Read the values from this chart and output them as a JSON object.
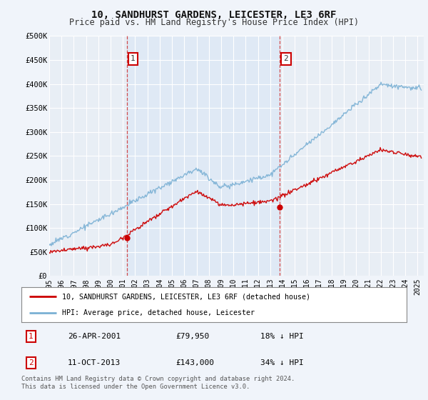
{
  "title": "10, SANDHURST GARDENS, LEICESTER, LE3 6RF",
  "subtitle": "Price paid vs. HM Land Registry's House Price Index (HPI)",
  "title_fontsize": 10,
  "subtitle_fontsize": 8.5,
  "bg_color": "#f0f4fa",
  "plot_bg_color": "#e8eef5",
  "grid_color": "#ffffff",
  "xmin": 1995.0,
  "xmax": 2025.5,
  "ymin": 0,
  "ymax": 500000,
  "yticks": [
    0,
    50000,
    100000,
    150000,
    200000,
    250000,
    300000,
    350000,
    400000,
    450000,
    500000
  ],
  "ytick_labels": [
    "£0",
    "£50K",
    "£100K",
    "£150K",
    "£200K",
    "£250K",
    "£300K",
    "£350K",
    "£400K",
    "£450K",
    "£500K"
  ],
  "xtick_years": [
    1995,
    1996,
    1997,
    1998,
    1999,
    2000,
    2001,
    2002,
    2003,
    2004,
    2005,
    2006,
    2007,
    2008,
    2009,
    2010,
    2011,
    2012,
    2013,
    2014,
    2015,
    2016,
    2017,
    2018,
    2019,
    2020,
    2021,
    2022,
    2023,
    2024,
    2025
  ],
  "sale1_x": 2001.32,
  "sale1_y": 79950,
  "sale1_label": "1",
  "sale1_date": "26-APR-2001",
  "sale1_price": "£79,950",
  "sale1_hpi": "18% ↓ HPI",
  "sale2_x": 2013.78,
  "sale2_y": 143000,
  "sale2_label": "2",
  "sale2_date": "11-OCT-2013",
  "sale2_price": "£143,000",
  "sale2_hpi": "34% ↓ HPI",
  "line_red_color": "#cc0000",
  "line_blue_color": "#7ab0d4",
  "vline_color": "#cc2222",
  "shade_color": "#dce8f5",
  "legend_label_red": "10, SANDHURST GARDENS, LEICESTER, LE3 6RF (detached house)",
  "legend_label_blue": "HPI: Average price, detached house, Leicester",
  "footer_text": "Contains HM Land Registry data © Crown copyright and database right 2024.\nThis data is licensed under the Open Government Licence v3.0.",
  "marker_box_color": "#cc0000"
}
